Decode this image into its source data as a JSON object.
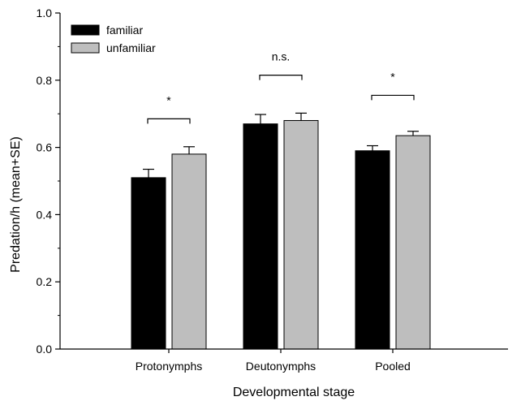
{
  "chart_data": {
    "type": "bar",
    "title": "",
    "xlabel": "Developmental stage",
    "ylabel": "Predation/h (mean+SE)",
    "ylim": [
      0,
      1.0
    ],
    "yticks": [
      "0.0",
      "0.2",
      "0.4",
      "0.6",
      "0.8",
      "1.0"
    ],
    "grid": false,
    "legend_position": "top-left",
    "categories": [
      "Protonymphs",
      "Deutonymphs",
      "Pooled"
    ],
    "series": [
      {
        "name": "familiar",
        "color": "#000000",
        "values": [
          0.51,
          0.67,
          0.59
        ],
        "errors": [
          0.025,
          0.028,
          0.015
        ]
      },
      {
        "name": "unfamiliar",
        "color": "#bebebe",
        "values": [
          0.58,
          0.68,
          0.635
        ],
        "errors": [
          0.022,
          0.022,
          0.013
        ]
      }
    ],
    "significance": [
      {
        "category": "Protonymphs",
        "label": "*",
        "level": 0.685
      },
      {
        "category": "Deutonymphs",
        "label": "n.s.",
        "level": 0.815
      },
      {
        "category": "Pooled",
        "label": "*",
        "level": 0.755
      }
    ]
  }
}
